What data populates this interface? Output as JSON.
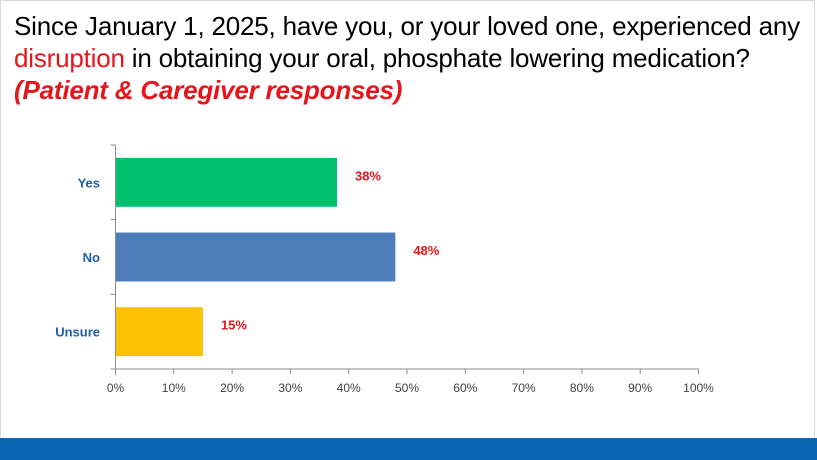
{
  "slide": {
    "title_part1": "Since January 1, 2025, have you, or your loved one, experienced any ",
    "title_highlight": "disruption",
    "title_part2": " in obtaining your oral, phosphate lowering medication? ",
    "title_subtitle": "(Patient & Caregiver responses)"
  },
  "colors": {
    "accent_red": "#e8141b",
    "category_label": "#1f5fa8",
    "footer": "#0a64b4"
  },
  "chart_data": {
    "type": "bar",
    "orientation": "horizontal",
    "categories": [
      "Yes",
      "No",
      "Unsure"
    ],
    "values": [
      38,
      48,
      15
    ],
    "data_labels": [
      "38%",
      "48%",
      "15%"
    ],
    "bar_colors": [
      "#00c06b",
      "#4f7db9",
      "#fcc203"
    ],
    "xlim": [
      0,
      100
    ],
    "xticks": [
      0,
      10,
      20,
      30,
      40,
      50,
      60,
      70,
      80,
      90,
      100
    ],
    "xtick_labels": [
      "0%",
      "10%",
      "20%",
      "30%",
      "40%",
      "50%",
      "60%",
      "70%",
      "80%",
      "90%",
      "100%"
    ],
    "grid": false,
    "legend": "none"
  }
}
